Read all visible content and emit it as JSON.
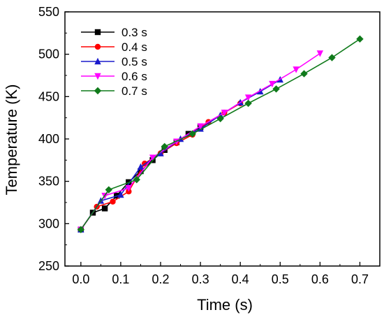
{
  "chart_data": {
    "type": "line",
    "title": "",
    "xlabel": "Time (s)",
    "ylabel": "Temperature (K)",
    "xlim": [
      -0.04,
      0.75
    ],
    "ylim": [
      250,
      550
    ],
    "xticks": [
      0.0,
      0.1,
      0.2,
      0.3,
      0.4,
      0.5,
      0.6,
      0.7
    ],
    "xtick_labels": [
      "0.0",
      "0.1",
      "0.2",
      "0.3",
      "0.4",
      "0.5",
      "0.6",
      "0.7"
    ],
    "yticks": [
      250,
      300,
      350,
      400,
      450,
      500,
      550
    ],
    "ytick_labels": [
      "250",
      "300",
      "350",
      "400",
      "450",
      "500",
      "550"
    ],
    "grid": false,
    "legend_position": "top-left",
    "series": [
      {
        "name": "0.3 s",
        "color": "#000000",
        "marker": "square",
        "x": [
          0.0,
          0.03,
          0.06,
          0.09,
          0.12,
          0.15,
          0.18,
          0.21,
          0.24,
          0.27,
          0.3
        ],
        "y": [
          293,
          313,
          318,
          333,
          349,
          362,
          375,
          387,
          396,
          406,
          414
        ]
      },
      {
        "name": "0.4 s",
        "color": "#ff0000",
        "marker": "circle",
        "x": [
          0.0,
          0.04,
          0.08,
          0.12,
          0.16,
          0.2,
          0.24,
          0.28,
          0.32,
          0.36,
          0.4
        ],
        "y": [
          293,
          320,
          326,
          338,
          371,
          383,
          395,
          405,
          420,
          431,
          442
        ]
      },
      {
        "name": "0.5 s",
        "color": "#1a1acc",
        "marker": "triangle-up",
        "x": [
          0.0,
          0.05,
          0.1,
          0.15,
          0.2,
          0.25,
          0.3,
          0.35,
          0.4,
          0.45,
          0.5
        ],
        "y": [
          293,
          327,
          334,
          367,
          383,
          400,
          412,
          428,
          443,
          456,
          470
        ]
      },
      {
        "name": "0.6 s",
        "color": "#ff00ff",
        "marker": "triangle-down",
        "x": [
          0.0,
          0.06,
          0.12,
          0.18,
          0.24,
          0.3,
          0.36,
          0.42,
          0.48,
          0.54,
          0.6
        ],
        "y": [
          293,
          333,
          342,
          378,
          397,
          415,
          431,
          449,
          465,
          482,
          501
        ]
      },
      {
        "name": "0.7 s",
        "color": "#0f7a1a",
        "marker": "diamond",
        "x": [
          0.0,
          0.07,
          0.14,
          0.21,
          0.28,
          0.35,
          0.42,
          0.49,
          0.56,
          0.63,
          0.7
        ],
        "y": [
          293,
          340,
          352,
          391,
          406,
          424,
          442,
          459,
          477,
          496,
          518
        ]
      }
    ]
  }
}
